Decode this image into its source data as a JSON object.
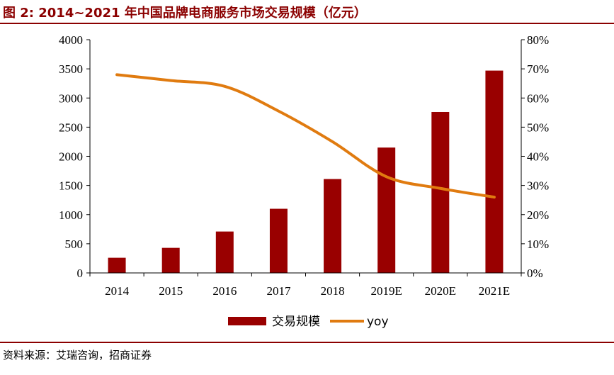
{
  "header": {
    "title": "图 2: 2014~2021 年中国品牌电商服务市场交易规模（亿元）"
  },
  "footer": {
    "source": "资料来源：艾瑞咨询，招商证券"
  },
  "colors": {
    "bar": "#990000",
    "line": "#e07b10",
    "title": "#8b0000",
    "axis": "#000000"
  },
  "chart_data": {
    "type": "bar",
    "categories": [
      "2014",
      "2015",
      "2016",
      "2017",
      "2018",
      "2019E",
      "2020E",
      "2021E"
    ],
    "series": [
      {
        "name": "交易规模",
        "type": "bar",
        "axis": "left",
        "values": [
          260,
          430,
          710,
          1100,
          1610,
          2150,
          2760,
          3470
        ]
      },
      {
        "name": "yoy",
        "type": "line",
        "axis": "right",
        "values": [
          0.68,
          0.66,
          0.64,
          0.555,
          0.45,
          0.33,
          0.29,
          0.26
        ]
      }
    ],
    "y_left": {
      "min": 0,
      "max": 4000,
      "step": 500,
      "tick_labels": [
        "0",
        "500",
        "1000",
        "1500",
        "2000",
        "2500",
        "3000",
        "3500",
        "4000"
      ]
    },
    "y_right": {
      "min": 0,
      "max": 0.8,
      "step": 0.1,
      "tick_labels": [
        "0%",
        "10%",
        "20%",
        "30%",
        "40%",
        "50%",
        "60%",
        "70%",
        "80%"
      ]
    },
    "grid": false,
    "legend": "bottom-center"
  }
}
